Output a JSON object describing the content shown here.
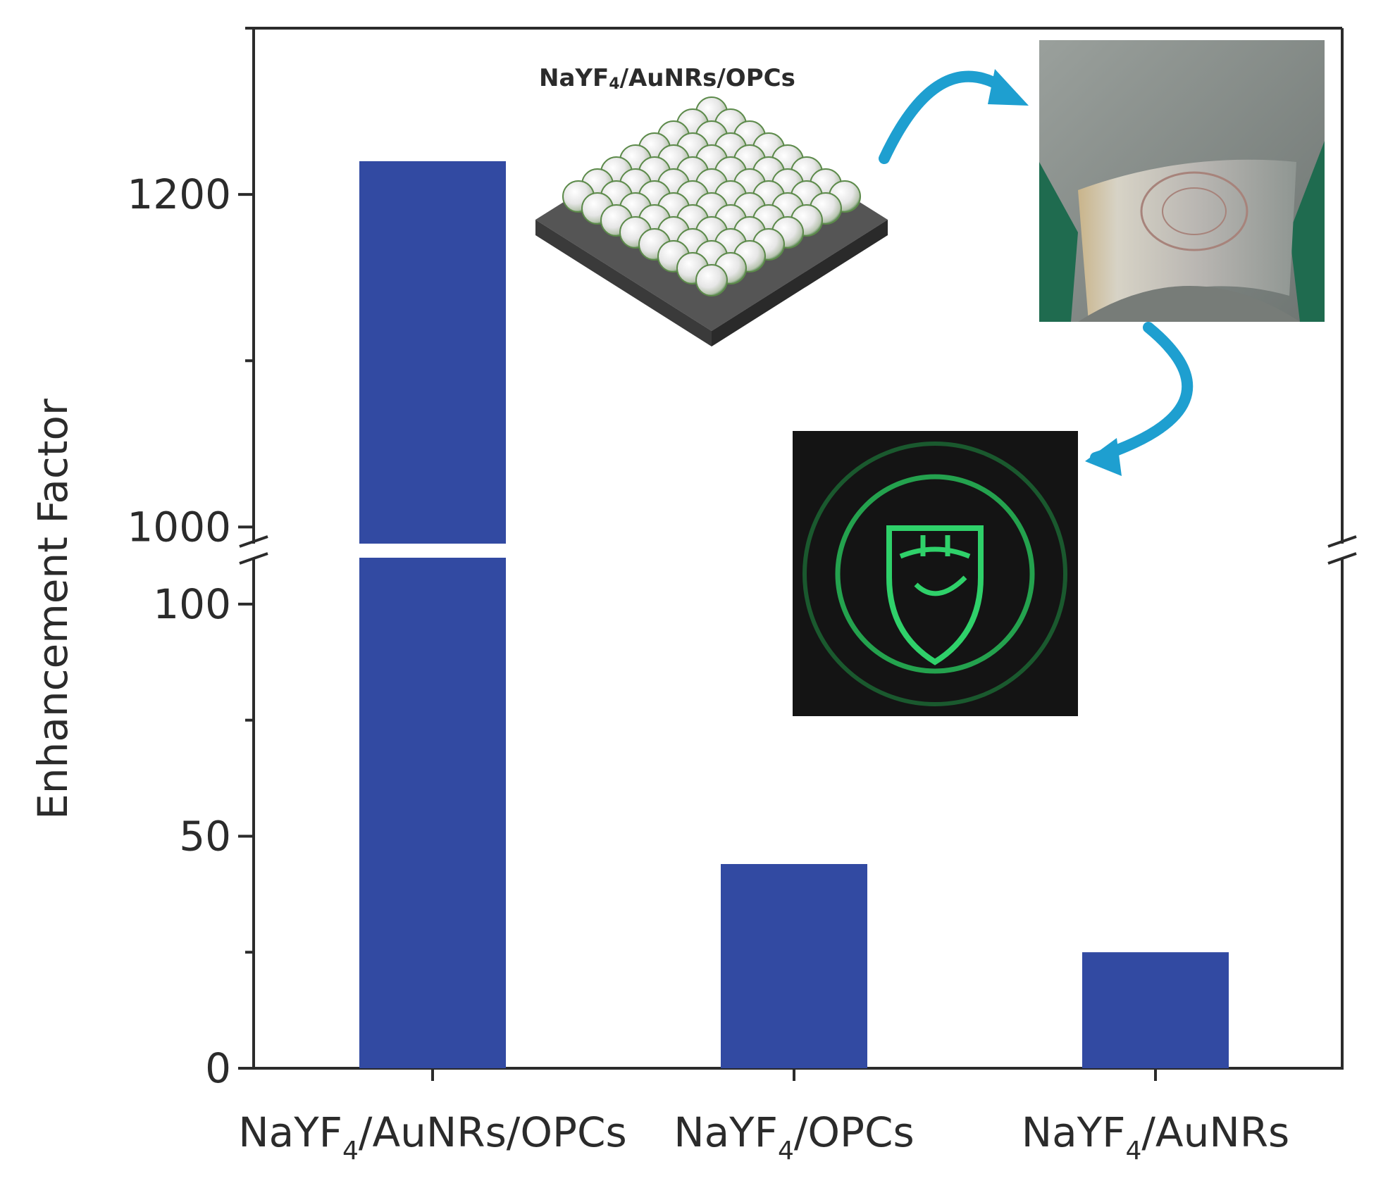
{
  "chart_data": {
    "type": "bar",
    "title": "",
    "xlabel": "",
    "ylabel": "Enhancement Factor",
    "bar_color": "#324aa2",
    "axis_break": {
      "lower_segment": [
        0,
        110
      ],
      "upper_segment": [
        990,
        1300
      ]
    },
    "categories": [
      {
        "main": "NaYF",
        "sub": "4",
        "rest": "/AuNRs/OPCs"
      },
      {
        "main": "NaYF",
        "sub": "4",
        "rest": "/OPCs"
      },
      {
        "main": "NaYF",
        "sub": "4",
        "rest": "/AuNRs"
      }
    ],
    "values": [
      1220,
      44,
      25
    ],
    "lower_ticks": [
      {
        "value": 0,
        "label": "0"
      },
      {
        "value": 50,
        "label": "50"
      },
      {
        "value": 100,
        "label": "100"
      }
    ],
    "upper_ticks": [
      {
        "value": 1000,
        "label": "1000"
      },
      {
        "value": 1200,
        "label": "1200"
      }
    ],
    "lower_minor_ticks": [
      25,
      75
    ],
    "upper_minor_ticks": [
      1100,
      1300
    ],
    "grid": false,
    "legend": "none"
  },
  "inset": {
    "label": {
      "main": "NaYF",
      "sub": "4",
      "rest": "/AuNRs/OPCs"
    },
    "sphere_color": "#eeeeee",
    "sphere_rim_color": "#5c8a4a",
    "substrate_color": "#4a4a4a",
    "arrow_color": "#1e9fd0",
    "fluorescence_color": "#2fd16a"
  }
}
